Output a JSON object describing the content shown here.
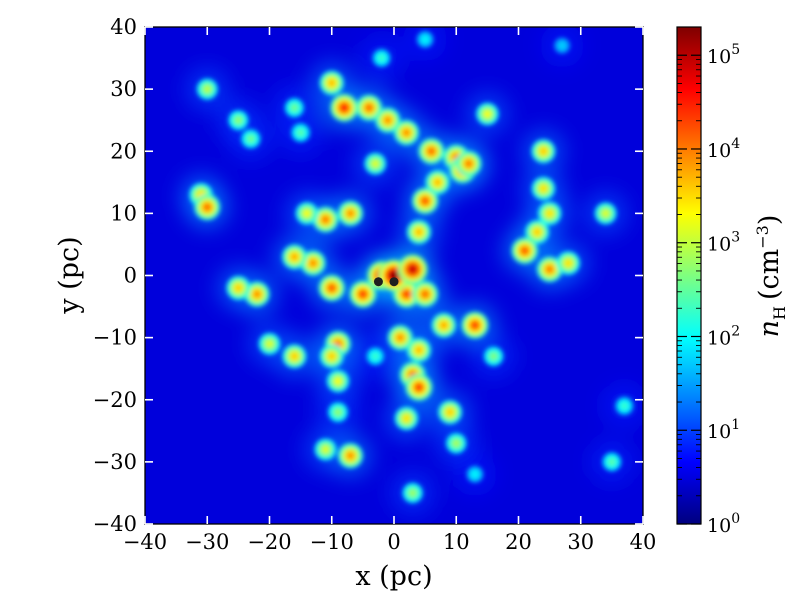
{
  "chart_data": {
    "type": "heatmap",
    "title": "",
    "xlabel": "x (pc)",
    "ylabel": "y (pc)",
    "xlim": [
      -40,
      40
    ],
    "ylim": [
      -40,
      40
    ],
    "xticks": [
      -40,
      -30,
      -20,
      -10,
      0,
      10,
      20,
      30,
      40
    ],
    "yticks": [
      -40,
      -30,
      -20,
      -10,
      0,
      10,
      20,
      30,
      40
    ],
    "xtick_labels": [
      "−40",
      "−30",
      "−20",
      "−10",
      "0",
      "10",
      "20",
      "30",
      "40"
    ],
    "ytick_labels": [
      "−40",
      "−30",
      "−20",
      "−10",
      "0",
      "10",
      "20",
      "30",
      "40"
    ],
    "grid": false,
    "colorbar": {
      "label": "n_H (cm^-3)",
      "label_main": "n",
      "label_sub": "H",
      "label_unit": "(cm",
      "label_sup": "−3",
      "label_close": ")",
      "scale": "log",
      "range": [
        1,
        200000
      ],
      "ticks": [
        1,
        10,
        100,
        1000,
        10000,
        100000
      ],
      "tick_bases": [
        "10",
        "10",
        "10",
        "10",
        "10",
        "10"
      ],
      "tick_exponents": [
        "0",
        "1",
        "2",
        "3",
        "4",
        "5"
      ],
      "colormap": "jet",
      "colors": [
        "#00007f",
        "#0000ff",
        "#007fff",
        "#00ffff",
        "#7fff7f",
        "#ffff00",
        "#ff7f00",
        "#ff0000",
        "#7f0000"
      ]
    },
    "background_density": 3,
    "clumps": [
      {
        "x": -2,
        "y": 0,
        "density": 50000
      },
      {
        "x": -5,
        "y": -3,
        "density": 20000
      },
      {
        "x": 2,
        "y": -3,
        "density": 20000
      },
      {
        "x": 5,
        "y": -3,
        "density": 12000
      },
      {
        "x": -10,
        "y": -2,
        "density": 15000
      },
      {
        "x": -13,
        "y": 2,
        "density": 8000
      },
      {
        "x": -16,
        "y": 3,
        "density": 6000
      },
      {
        "x": -22,
        "y": -3,
        "density": 8000
      },
      {
        "x": -25,
        "y": -2,
        "density": 4000
      },
      {
        "x": -8,
        "y": 27,
        "density": 30000
      },
      {
        "x": -4,
        "y": 27,
        "density": 12000
      },
      {
        "x": -10,
        "y": 31,
        "density": 5000
      },
      {
        "x": -1,
        "y": 25,
        "density": 8000
      },
      {
        "x": 2,
        "y": 23,
        "density": 8000
      },
      {
        "x": 6,
        "y": 20,
        "density": 12000
      },
      {
        "x": 10,
        "y": 19,
        "density": 10000
      },
      {
        "x": 11,
        "y": 17,
        "density": 15000
      },
      {
        "x": 12,
        "y": 18,
        "density": 10000
      },
      {
        "x": 5,
        "y": 12,
        "density": 15000
      },
      {
        "x": 7,
        "y": 15,
        "density": 5000
      },
      {
        "x": 4,
        "y": 7,
        "density": 5000
      },
      {
        "x": -7,
        "y": 10,
        "density": 8000
      },
      {
        "x": -11,
        "y": 9,
        "density": 10000
      },
      {
        "x": -14,
        "y": 10,
        "density": 2000
      },
      {
        "x": -3,
        "y": 18,
        "density": 1500
      },
      {
        "x": -30,
        "y": 30,
        "density": 1000
      },
      {
        "x": -25,
        "y": 25,
        "density": 600
      },
      {
        "x": -23,
        "y": 22,
        "density": 400
      },
      {
        "x": -16,
        "y": 27,
        "density": 400
      },
      {
        "x": -15,
        "y": 23,
        "density": 300
      },
      {
        "x": -2,
        "y": 35,
        "density": 200
      },
      {
        "x": -31,
        "y": 13,
        "density": 3000
      },
      {
        "x": -30,
        "y": 11,
        "density": 12000
      },
      {
        "x": 15,
        "y": 26,
        "density": 2000
      },
      {
        "x": 24,
        "y": 20,
        "density": 4000
      },
      {
        "x": 24,
        "y": 14,
        "density": 3000
      },
      {
        "x": 25,
        "y": 10,
        "density": 3000
      },
      {
        "x": 23,
        "y": 7,
        "density": 4000
      },
      {
        "x": 21,
        "y": 4,
        "density": 15000
      },
      {
        "x": 25,
        "y": 1,
        "density": 10000
      },
      {
        "x": 28,
        "y": 2,
        "density": 3000
      },
      {
        "x": 34,
        "y": 10,
        "density": 1500
      },
      {
        "x": 13,
        "y": -8,
        "density": 20000
      },
      {
        "x": 8,
        "y": -8,
        "density": 6000
      },
      {
        "x": 4,
        "y": -12,
        "density": 5000
      },
      {
        "x": 3,
        "y": -16,
        "density": 12000
      },
      {
        "x": 4,
        "y": -18,
        "density": 20000
      },
      {
        "x": 1,
        "y": -10,
        "density": 8000
      },
      {
        "x": -3,
        "y": -13,
        "density": 200
      },
      {
        "x": -9,
        "y": -11,
        "density": 10000
      },
      {
        "x": -10,
        "y": -13,
        "density": 4000
      },
      {
        "x": -16,
        "y": -13,
        "density": 4000
      },
      {
        "x": -20,
        "y": -11,
        "density": 1500
      },
      {
        "x": -9,
        "y": -17,
        "density": 2000
      },
      {
        "x": -9,
        "y": -22,
        "density": 600
      },
      {
        "x": -11,
        "y": -28,
        "density": 1500
      },
      {
        "x": -7,
        "y": -29,
        "density": 8000
      },
      {
        "x": 2,
        "y": -23,
        "density": 3000
      },
      {
        "x": 9,
        "y": -22,
        "density": 4000
      },
      {
        "x": 10,
        "y": -27,
        "density": 800
      },
      {
        "x": 13,
        "y": -32,
        "density": 100
      },
      {
        "x": 16,
        "y": -13,
        "density": 500
      },
      {
        "x": 3,
        "y": -35,
        "density": 700
      },
      {
        "x": 35,
        "y": -30,
        "density": 300
      },
      {
        "x": 37,
        "y": -21,
        "density": 200
      },
      {
        "x": 5,
        "y": 38,
        "density": 100
      },
      {
        "x": 27,
        "y": 37,
        "density": 60
      },
      {
        "x": 0,
        "y": 0,
        "density": 200000
      },
      {
        "x": 3,
        "y": 1,
        "density": 80000
      }
    ],
    "sinks": [
      {
        "x": -2.5,
        "y": -1
      },
      {
        "x": 0,
        "y": -1
      }
    ]
  }
}
